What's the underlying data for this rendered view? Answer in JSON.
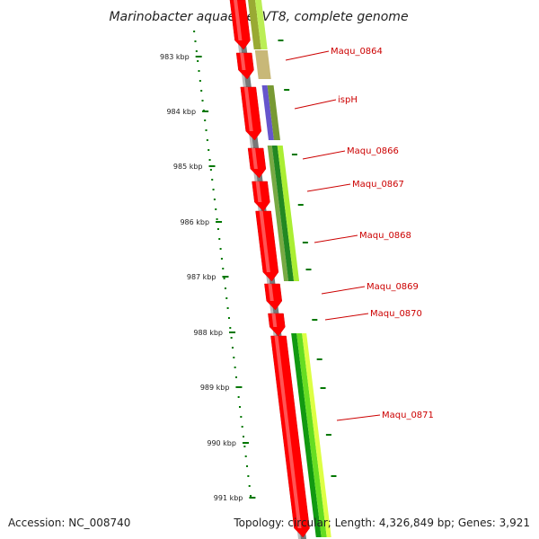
{
  "title": "Marinobacter aquaeolei VT8, complete genome",
  "footer": {
    "accession": "Accession: NC_008740",
    "summary": "Topology: circular; Length: 4,326,849 bp; Genes: 3,921"
  },
  "ticks": [
    "983 kbp",
    "984 kbp",
    "985 kbp",
    "986 kbp",
    "987 kbp",
    "988 kbp",
    "989 kbp",
    "990 kbp",
    "991 kbp"
  ],
  "genes": [
    {
      "name": "Maqu_0864"
    },
    {
      "name": "ispH"
    },
    {
      "name": "Maqu_0866"
    },
    {
      "name": "Maqu_0867"
    },
    {
      "name": "Maqu_0868"
    },
    {
      "name": "Maqu_0869"
    },
    {
      "name": "Maqu_0870"
    },
    {
      "name": "Maqu_0871"
    }
  ],
  "colors": {
    "backbone": "#888888",
    "cds": "#ff0000",
    "tick": "#007700",
    "label": "#cc0000",
    "leader": "#cc0000"
  }
}
